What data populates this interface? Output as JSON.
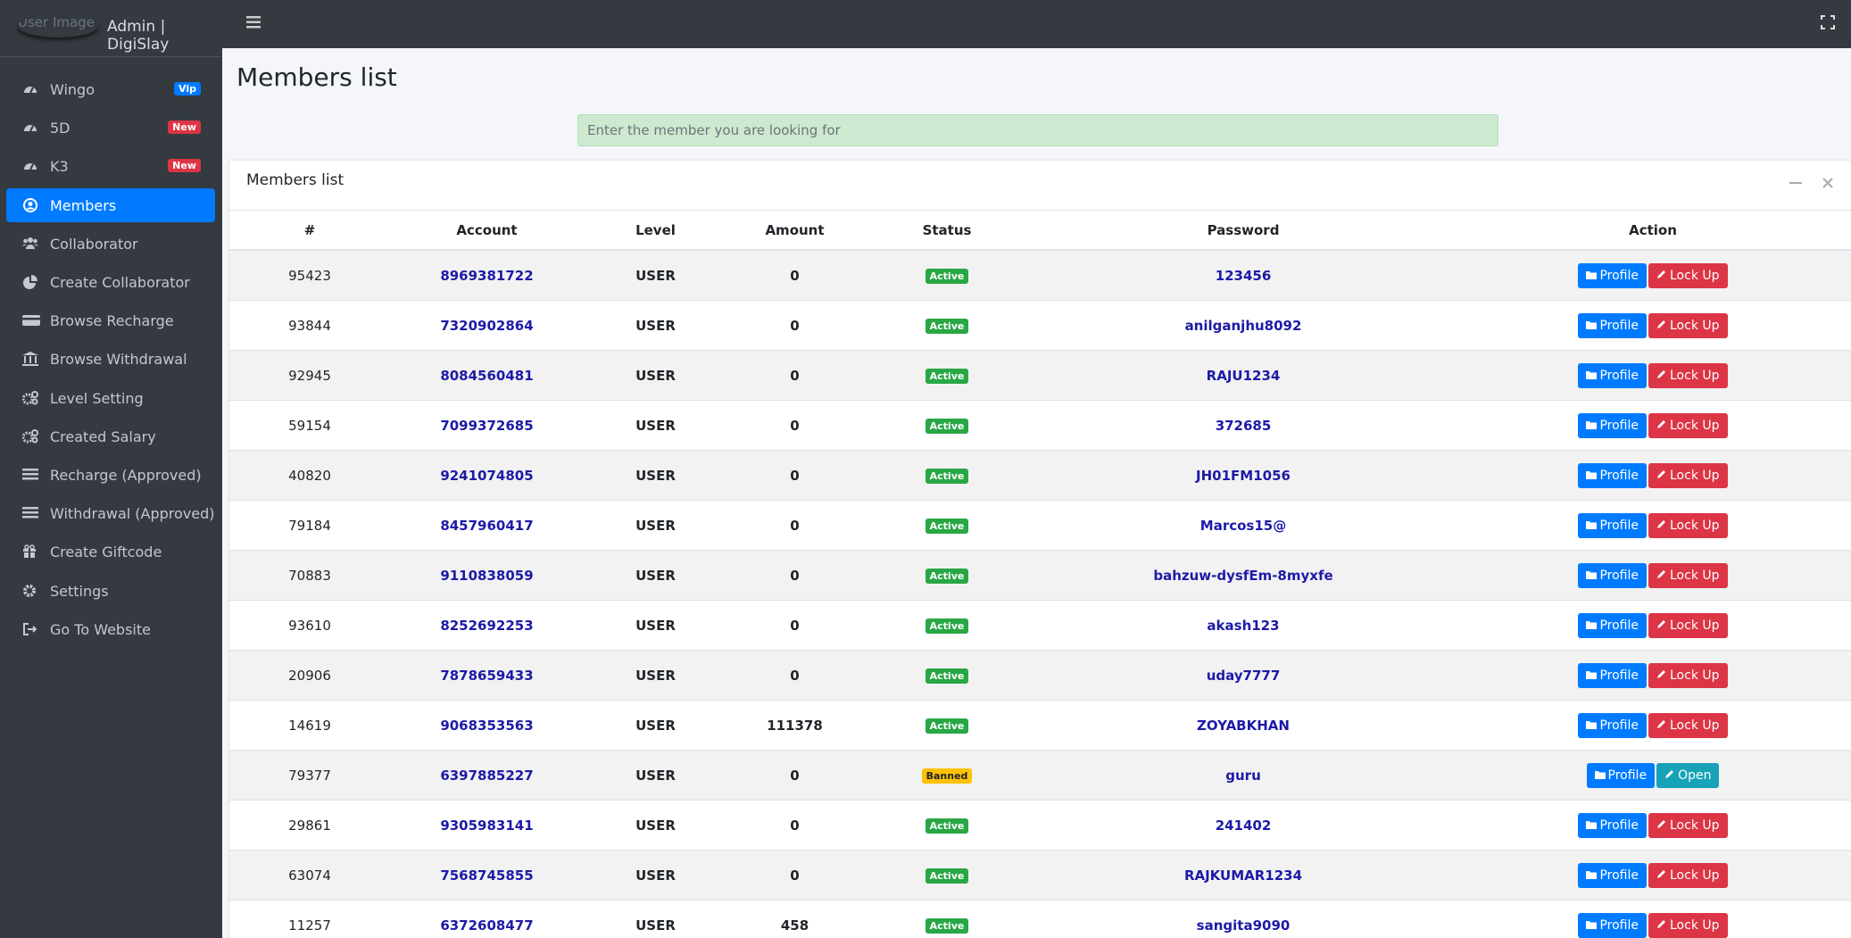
{
  "brand": {
    "logo_alt": "User Image",
    "title": "Admin | DigiSlay"
  },
  "sidebar": [
    {
      "label": "Wingo",
      "badge": "Vip",
      "badge_color": "#007bff",
      "icon": "gauge"
    },
    {
      "label": "5D",
      "badge": "New",
      "badge_color": "#dc3545",
      "icon": "gauge"
    },
    {
      "label": "K3",
      "badge": "New",
      "badge_color": "#dc3545",
      "icon": "gauge"
    },
    {
      "label": "Members",
      "active": true,
      "icon": "user"
    },
    {
      "label": "Collaborator",
      "icon": "users"
    },
    {
      "label": "Create Collaborator",
      "icon": "pie"
    },
    {
      "label": "Browse Recharge",
      "icon": "card"
    },
    {
      "label": "Browse Withdrawal",
      "icon": "bank"
    },
    {
      "label": "Level Setting",
      "icon": "cogs"
    },
    {
      "label": "Created Salary",
      "icon": "cogs"
    },
    {
      "label": "Recharge (Approved)",
      "icon": "list"
    },
    {
      "label": "Withdrawal (Approved)",
      "icon": "list"
    },
    {
      "label": "Create Giftcode",
      "icon": "gift"
    },
    {
      "label": "Settings",
      "icon": "cog"
    },
    {
      "label": "Go To Website",
      "icon": "exit"
    }
  ],
  "page_title": "Members list",
  "search_placeholder": "Enter the member you are looking for",
  "card_title": "Members list",
  "table": {
    "columns": [
      "#",
      "Account",
      "Level",
      "Amount",
      "Status",
      "Password",
      "Action"
    ],
    "rows": [
      [
        "95423",
        "8969381722",
        "USER",
        0,
        "Active",
        "123456",
        [
          "Profile",
          "Lock Up"
        ]
      ],
      [
        "93844",
        "7320902864",
        "USER",
        0,
        "Active",
        "anilganjhu8092",
        [
          "Profile",
          "Lock Up"
        ]
      ],
      [
        "92945",
        "8084560481",
        "USER",
        0,
        "Active",
        "RAJU1234",
        [
          "Profile",
          "Lock Up"
        ]
      ],
      [
        "59154",
        "7099372685",
        "USER",
        0,
        "Active",
        "372685",
        [
          "Profile",
          "Lock Up"
        ]
      ],
      [
        "40820",
        "9241074805",
        "USER",
        0,
        "Active",
        "JH01FM1056",
        [
          "Profile",
          "Lock Up"
        ]
      ],
      [
        "79184",
        "8457960417",
        "USER",
        0,
        "Active",
        "Marcos15@",
        [
          "Profile",
          "Lock Up"
        ]
      ],
      [
        "70883",
        "9110838059",
        "USER",
        0,
        "Active",
        "bahzuw-dysfEm-8myxfe",
        [
          "Profile",
          "Lock Up"
        ]
      ],
      [
        "93610",
        "8252692253",
        "USER",
        0,
        "Active",
        "akash123",
        [
          "Profile",
          "Lock Up"
        ]
      ],
      [
        "20906",
        "7878659433",
        "USER",
        0,
        "Active",
        "uday7777",
        [
          "Profile",
          "Lock Up"
        ]
      ],
      [
        "14619",
        "9068353563",
        "USER",
        111378,
        "Active",
        "ZOYABKHAN",
        [
          "Profile",
          "Lock Up"
        ]
      ],
      [
        "79377",
        "6397885227",
        "USER",
        0,
        "Banned",
        "guru",
        [
          "Profile",
          "Open"
        ]
      ],
      [
        "29861",
        "9305983141",
        "USER",
        0,
        "Active",
        "241402",
        [
          "Profile",
          "Lock Up"
        ]
      ],
      [
        "63074",
        "7568745855",
        "USER",
        0,
        "Active",
        "RAJKUMAR1234",
        [
          "Profile",
          "Lock Up"
        ]
      ],
      [
        "11257",
        "6372608477",
        "USER",
        458,
        "Active",
        "sangita9090",
        [
          "Profile",
          "Lock Up"
        ]
      ]
    ]
  }
}
